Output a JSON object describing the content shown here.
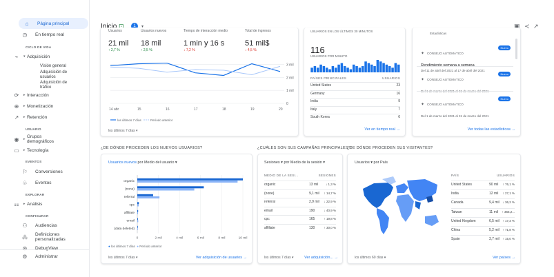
{
  "sidebar": {
    "items": [
      {
        "label": "Página principal",
        "icon": "home-icon"
      },
      {
        "label": "En tiempo real",
        "icon": "clock-icon"
      },
      {
        "label": "Adquisición",
        "icon": "acquisition-icon"
      },
      {
        "label": "Interacción",
        "icon": "engagement-icon"
      },
      {
        "label": "Monetización",
        "icon": "monetization-icon"
      },
      {
        "label": "Retención",
        "icon": "retention-icon"
      },
      {
        "label": "Grupos demográficos",
        "icon": "globe-icon"
      },
      {
        "label": "Tecnología",
        "icon": "device-icon"
      },
      {
        "label": "Conversiones",
        "icon": "flag-icon"
      },
      {
        "label": "Eventos",
        "icon": "events-icon"
      },
      {
        "label": "Análisis",
        "icon": "analysis-icon"
      },
      {
        "label": "Audiencias",
        "icon": "audience-icon"
      },
      {
        "label": "Definiciones personalizadas",
        "icon": "definitions-icon"
      },
      {
        "label": "DebugView",
        "icon": "debug-icon"
      },
      {
        "label": "Administrar",
        "icon": "gear-icon"
      }
    ],
    "sections": {
      "lifecycle": "CICLO DE VIDA",
      "user": "USUARIO",
      "events": "EVENTOS",
      "explore": "EXPLORAR",
      "configure": "CONFIGURAR"
    },
    "acquisition_sub": [
      "Visión general",
      "Adquisición de usuarios",
      "Adquisición de tráfico"
    ]
  },
  "header": {
    "title": "Inicio",
    "badge": "1"
  },
  "overview": {
    "metrics": [
      {
        "label": "Usuarios",
        "value": "21 mil",
        "delta": "↑ 2,7 %"
      },
      {
        "label": "Usuarios nuevos",
        "value": "18 mil",
        "delta": "↑ 2,5 %"
      },
      {
        "label": "Tiempo de interacción medio",
        "value": "1 min y 16 s",
        "delta": "↓ 7,2 %"
      },
      {
        "label": "Total de ingresos",
        "value": "51 mil$",
        "delta": "↓ 4,5 %"
      }
    ],
    "y_ticks": [
      "3 mil",
      "2 mil",
      "1 mil",
      "0"
    ],
    "x_ticks": [
      "14 abr",
      "15",
      "16",
      "17",
      "18",
      "19",
      "20"
    ],
    "legend": [
      "los últimos 7 días",
      "Período anterior"
    ],
    "range_label": "los últimos 7 días"
  },
  "realtime": {
    "title": "USUARIOS EN LOS ÚLTIMOS 30 MINUTOS",
    "value": "116",
    "subtitle": "USUARIOS POR MINUTO",
    "col_country": "PAÍSES PRINCIPALES",
    "col_users": "USUARIOS",
    "rows": [
      {
        "country": "United States",
        "users": "23"
      },
      {
        "country": "Germany",
        "users": "16"
      },
      {
        "country": "India",
        "users": "9"
      },
      {
        "country": "Italy",
        "users": "7"
      },
      {
        "country": "South Korea",
        "users": "6"
      }
    ],
    "link": "Ver en tiempo real →"
  },
  "insights": {
    "title": "Estadísticas",
    "items": [
      {
        "label": "CONSEJO AUTOMÁTICO",
        "badge": "Nuevo",
        "title": "Rendimiento semana a semana",
        "date": "Del 11 de abril del 2021 al 17 de abril del 2021"
      },
      {
        "label": "CONSEJO AUTOMÁTICO",
        "badge": "Nuevo",
        "title": "",
        "date": "Del 1 de marzo del 2021 al 31 de marzo del 2021"
      },
      {
        "label": "CONSEJO AUTOMÁTICO",
        "badge": "Nuevo",
        "title": "",
        "date": "Del 1 de marzo del 2021 al 31 de marzo del 2021"
      }
    ],
    "link": "Ver todas las estadísticas →"
  },
  "new_users": {
    "section": "¿DE DÓNDE PROCEDEN LOS NUEVOS USUARIOS?",
    "dropdown_a": "Usuarios nuevos",
    "dropdown_b": "por Medio del usuario ▾",
    "range_label": "los últimos 7 días",
    "link": "Ver adquisición de usuarios →",
    "legend": [
      "los últimos 7 días",
      "Período anterior"
    ]
  },
  "campaigns": {
    "section": "¿CUÁLES SON SUS CAMPAÑAS PRINCIPALES?",
    "dropdown": "Sesiones ▾ por Medio de la sesión ▾",
    "col_a": "MEDIO DE LA SESI...",
    "col_b": "SESIONES",
    "rows": [
      {
        "medium": "organic",
        "sessions": "13 mil",
        "delta": "↓ 1,3 %"
      },
      {
        "medium": "(none)",
        "sessions": "9,1 mil",
        "delta": "↑ 14,7 %"
      },
      {
        "medium": "referral",
        "sessions": "2,9 mil",
        "delta": "↓ 22,9 %"
      },
      {
        "medium": "email",
        "sessions": "190",
        "delta": "↓ 40,9 %"
      },
      {
        "medium": "cpc",
        "sessions": "165",
        "delta": "↑ 19,8 %"
      },
      {
        "medium": "affiliate",
        "sessions": "130",
        "delta": "↑ 30,0 %"
      }
    ],
    "range_label": "los últimos 7 días",
    "link": "Ver adquisición... →"
  },
  "visitors": {
    "section": "¿DE DÓNDE PROCEDEN SUS VISITANTES?",
    "dropdown": "Usuarios ▾ por País",
    "col_a": "PAÍS",
    "col_b": "USUARIOS",
    "rows": [
      {
        "country": "United States",
        "users": "90 mil",
        "delta": "↑ 76,1 %"
      },
      {
        "country": "India",
        "users": "12 mil",
        "delta": "↑ 27,1 %"
      },
      {
        "country": "Canada",
        "users": "9,4 mil",
        "delta": "↓ 36,2 %"
      },
      {
        "country": "Taiwan",
        "users": "11 mil",
        "delta": "↑ 366,2..."
      },
      {
        "country": "United Kingdom",
        "users": "6,5 mil",
        "delta": "↑ 17,3 %"
      },
      {
        "country": "China",
        "users": "5,2 mil",
        "delta": "↑ 71,8 %"
      },
      {
        "country": "Spain",
        "users": "3,7 mil",
        "delta": "↑ 15,0 %"
      }
    ],
    "range_label": "los últimos 60 días",
    "link": "Ver países →"
  },
  "chart_data": [
    {
      "type": "line",
      "x": [
        "14",
        "15",
        "16",
        "17",
        "18",
        "19",
        "20"
      ],
      "series": [
        {
          "name": "los últimos 7 días",
          "values": [
            2900,
            3050,
            3100,
            2350,
            2150,
            3050,
            2450
          ]
        },
        {
          "name": "Período anterior",
          "values": [
            2800,
            2700,
            2400,
            2600,
            2550,
            2200,
            2850
          ]
        }
      ],
      "ylim": [
        0,
        3500
      ]
    },
    {
      "type": "bar",
      "categories": [
        "organic",
        "(none)",
        "referral",
        "cpc",
        "affiliate",
        "email",
        "(data deleted)"
      ],
      "series": [
        {
          "name": "los últimos 7 días",
          "values": [
            10000,
            6300,
            1500,
            150,
            80,
            60,
            5
          ]
        },
        {
          "name": "Período anterior",
          "values": [
            9500,
            5400,
            2100,
            130,
            70,
            90,
            10
          ]
        }
      ],
      "x_ticks": [
        "0",
        "2 mil",
        "4 mil",
        "6 mil",
        "8 mil",
        "10 mil"
      ],
      "xlim": [
        0,
        10000
      ]
    },
    {
      "type": "bar",
      "title": "USUARIOS POR MINUTO",
      "values": [
        3,
        4,
        3,
        5,
        4,
        3,
        2,
        4,
        3,
        5,
        6,
        4,
        3,
        2,
        5,
        4,
        3,
        4,
        7,
        6,
        5,
        4,
        8,
        7,
        6,
        5,
        4,
        3,
        6,
        5
      ]
    }
  ]
}
